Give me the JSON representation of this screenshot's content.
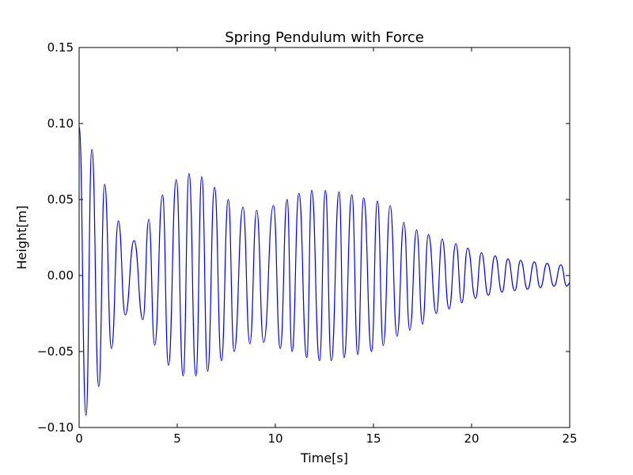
{
  "chart_data": {
    "type": "line",
    "title": "Spring Pendulum with Force",
    "xlabel": "Time[s]",
    "ylabel": "Height[m]",
    "xlim": [
      0,
      25
    ],
    "ylim": [
      -0.1,
      0.15
    ],
    "xticks": [
      0,
      5,
      10,
      15,
      20,
      25
    ],
    "xtick_labels": [
      "0",
      "5",
      "10",
      "15",
      "20",
      "25"
    ],
    "yticks": [
      -0.1,
      -0.05,
      0.0,
      0.05,
      0.1,
      0.15
    ],
    "ytick_labels": [
      "−0.10",
      "−0.05",
      "0.00",
      "0.05",
      "0.10",
      "0.15"
    ],
    "grid": false,
    "legend": "none",
    "series": [
      {
        "color": "#0000ff",
        "x": [
          0,
          0.35,
          0.65,
          1.0,
          1.3,
          1.65,
          2.0,
          2.35,
          2.8,
          3.25,
          3.55,
          3.85,
          4.25,
          4.55,
          4.95,
          5.3,
          5.6,
          5.95,
          6.25,
          6.55,
          6.9,
          7.25,
          7.6,
          7.9,
          8.35,
          8.7,
          9.05,
          9.4,
          9.9,
          10.25,
          10.6,
          10.85,
          11.2,
          11.6,
          11.85,
          12.25,
          12.55,
          12.85,
          13.25,
          13.5,
          13.9,
          14.2,
          14.5,
          14.9,
          15.2,
          15.5,
          15.85,
          16.2,
          16.55,
          16.85,
          17.2,
          17.5,
          17.8,
          18.2,
          18.5,
          18.85,
          19.2,
          19.5,
          19.8,
          20.2,
          20.5,
          20.85,
          21.2,
          21.55,
          21.85,
          22.2,
          22.5,
          22.85,
          23.2,
          23.5,
          23.85,
          24.2,
          24.55,
          24.85,
          25.0
        ],
        "y": [
          0.098,
          -0.092,
          0.083,
          -0.073,
          0.06,
          -0.048,
          0.036,
          -0.026,
          0.023,
          -0.029,
          0.037,
          -0.046,
          0.053,
          -0.059,
          0.063,
          -0.066,
          0.067,
          -0.066,
          0.065,
          -0.063,
          0.058,
          -0.056,
          0.05,
          -0.05,
          0.045,
          -0.045,
          0.043,
          -0.044,
          0.046,
          -0.048,
          0.05,
          -0.05,
          0.054,
          -0.054,
          0.056,
          -0.056,
          0.056,
          -0.056,
          0.055,
          -0.054,
          0.053,
          -0.052,
          0.051,
          -0.05,
          0.049,
          -0.046,
          0.046,
          -0.04,
          0.035,
          -0.036,
          0.03,
          -0.032,
          0.027,
          -0.025,
          0.024,
          -0.022,
          0.021,
          -0.018,
          0.018,
          -0.015,
          0.015,
          -0.013,
          0.013,
          -0.011,
          0.011,
          -0.01,
          0.01,
          -0.009,
          0.009,
          -0.008,
          0.008,
          -0.007,
          0.007,
          -0.007,
          -0.005
        ]
      }
    ]
  }
}
